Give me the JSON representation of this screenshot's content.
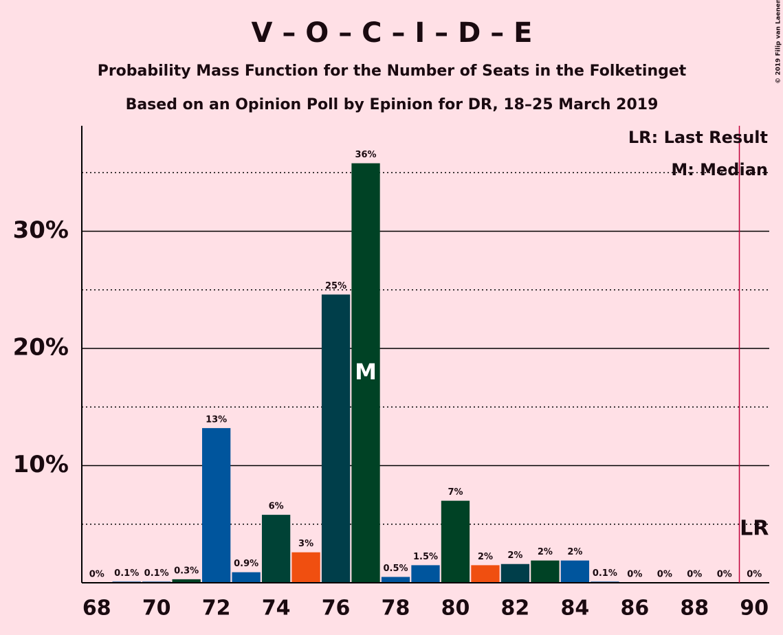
{
  "chart_data": {
    "type": "bar",
    "title": "V – O – C – I – D – E",
    "subtitle": "Probability Mass Function for the Number of Seats in the Folketinget",
    "subtitle2": "Based on an Opinion Poll by Epinion for DR, 18–25 March 2019",
    "copyright": "© 2019 Filip van Laenen",
    "x": [
      68,
      69,
      70,
      71,
      72,
      73,
      74,
      75,
      76,
      77,
      78,
      79,
      80,
      81,
      82,
      83,
      84,
      85,
      86,
      87,
      88,
      89,
      90
    ],
    "values": [
      0,
      0.1,
      0.1,
      0.3,
      13.2,
      0.9,
      5.8,
      2.6,
      24.6,
      35.8,
      0.5,
      1.5,
      7.0,
      1.5,
      1.6,
      1.9,
      1.9,
      0.1,
      0,
      0,
      0,
      0,
      0
    ],
    "value_labels": [
      "0%",
      "0.1%",
      "0.1%",
      "0.3%",
      "13%",
      "0.9%",
      "6%",
      "3%",
      "25%",
      "36%",
      "0.5%",
      "1.5%",
      "7%",
      "2%",
      "2%",
      "2%",
      "2%",
      "0.1%",
      "0%",
      "0%",
      "0%",
      "0%",
      "0%"
    ],
    "colors": [
      "#00559d",
      "#00559d",
      "#00559d",
      "#004225",
      "#00559d",
      "#00559d",
      "#004236",
      "#f04f10",
      "#003e4a",
      "#004225",
      "#00559d",
      "#00559d",
      "#004225",
      "#f04f10",
      "#003e4a",
      "#004225",
      "#00559d",
      "#00559d",
      "#00559d",
      "#00559d",
      "#00559d",
      "#00559d",
      "#00559d"
    ],
    "xlim": [
      67.5,
      90.5
    ],
    "xticks": [
      68,
      70,
      72,
      74,
      76,
      78,
      80,
      82,
      84,
      86,
      88,
      90
    ],
    "ylim": [
      0,
      39
    ],
    "yticks": [
      {
        "value": 10,
        "label": "10%"
      },
      {
        "value": 20,
        "label": "20%"
      },
      {
        "value": 30,
        "label": "30%"
      }
    ],
    "minor_gridlines": [
      5,
      15,
      25,
      35
    ],
    "grid": true,
    "median": 77,
    "median_label": "M",
    "last_result": 90,
    "last_result_label": "LR",
    "legend": [
      "LR: Last Result",
      "M: Median"
    ]
  }
}
